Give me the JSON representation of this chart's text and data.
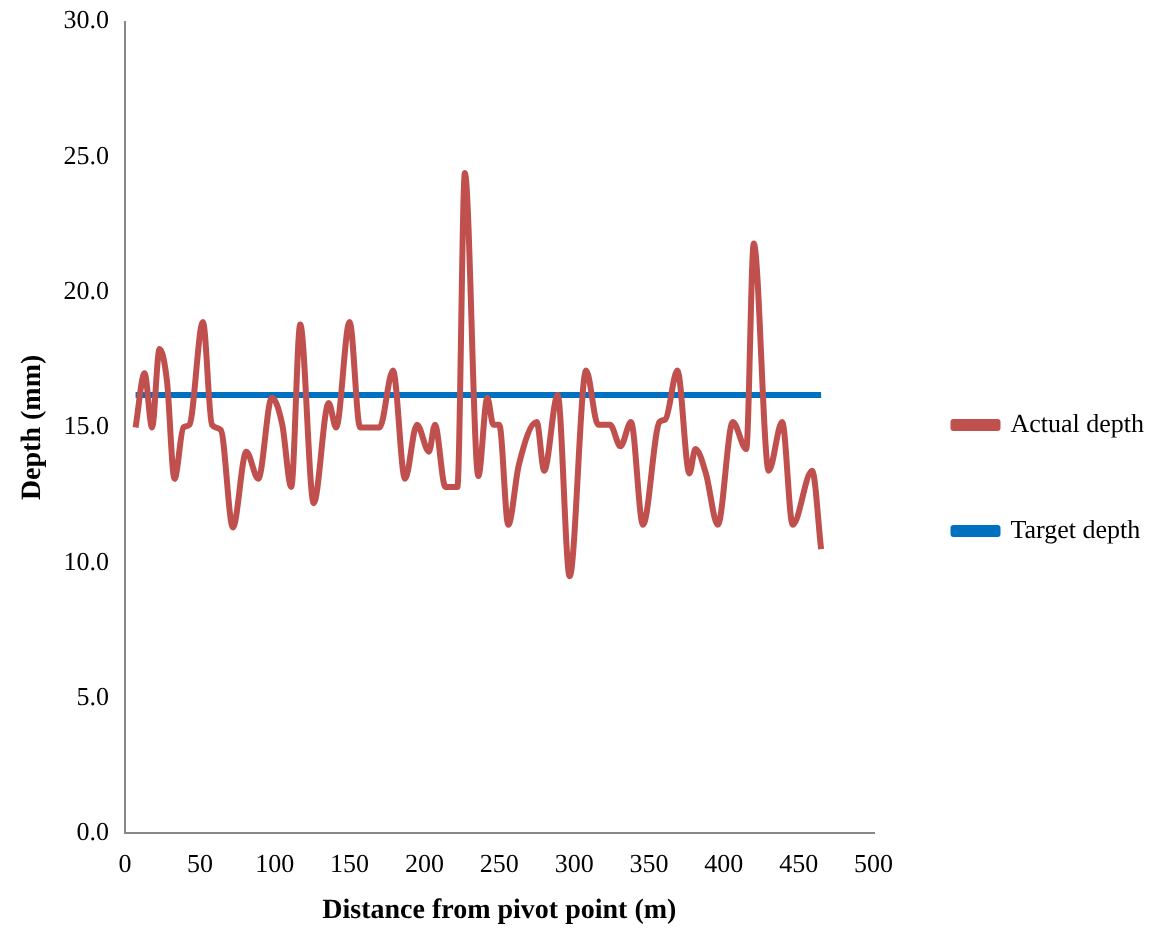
{
  "chart_data": {
    "type": "line",
    "xlabel": "Distance from pivot point (m)",
    "ylabel": "Depth (mm)",
    "xlim": [
      0,
      500
    ],
    "xticks": [
      0,
      50,
      100,
      150,
      200,
      250,
      300,
      350,
      400,
      450,
      500
    ],
    "ylim": [
      0,
      30
    ],
    "yticks": [
      {
        "value": 0,
        "label": "0.0"
      },
      {
        "value": 5,
        "label": "5.0"
      },
      {
        "value": 10,
        "label": "10.0"
      },
      {
        "value": 15,
        "label": "15.0"
      },
      {
        "value": 20,
        "label": "20.0"
      },
      {
        "value": 25,
        "label": "25.0"
      },
      {
        "value": 30,
        "label": "30.0"
      }
    ],
    "grid": false,
    "legend": "right",
    "marker": "none",
    "line_style": "solid",
    "series": [
      {
        "name": "Actual depth",
        "color": "#c0504d",
        "x": [
          7,
          13,
          18,
          23,
          28,
          33,
          39,
          43,
          52,
          58,
          64,
          72,
          81,
          89,
          98,
          105,
          111,
          117,
          126,
          136,
          141,
          150,
          157,
          170,
          179,
          187,
          195,
          203,
          207,
          214,
          222,
          227,
          236,
          242,
          246,
          250,
          256,
          263,
          275,
          280,
          289,
          297,
          308,
          316,
          324,
          331,
          338,
          346,
          357,
          361,
          369,
          377,
          381,
          388,
          396,
          406,
          415,
          420,
          430,
          439,
          446,
          459,
          465
        ],
        "values": [
          15,
          17,
          15,
          17.9,
          16.7,
          13.1,
          15,
          15.1,
          18.9,
          15.1,
          14.9,
          11.3,
          14.1,
          13.1,
          16.1,
          15.1,
          12.8,
          18.8,
          12.2,
          15.9,
          15,
          18.9,
          15,
          15,
          17.1,
          13.1,
          15.1,
          14.1,
          15.1,
          12.8,
          12.8,
          24.4,
          13.2,
          16.1,
          15.1,
          15.1,
          11.4,
          13.6,
          15.2,
          13.4,
          16.2,
          9.5,
          17.1,
          15.1,
          15.1,
          14.3,
          15.2,
          11.4,
          15.2,
          15.3,
          17.1,
          13.3,
          14.2,
          13.3,
          11.4,
          15.2,
          14.2,
          21.8,
          13.4,
          15.2,
          11.4,
          13.4,
          10.5
        ]
      },
      {
        "name": "Target depth",
        "color": "#0070c0",
        "x": [
          7,
          465
        ],
        "values": [
          16.2,
          16.2
        ]
      }
    ]
  }
}
